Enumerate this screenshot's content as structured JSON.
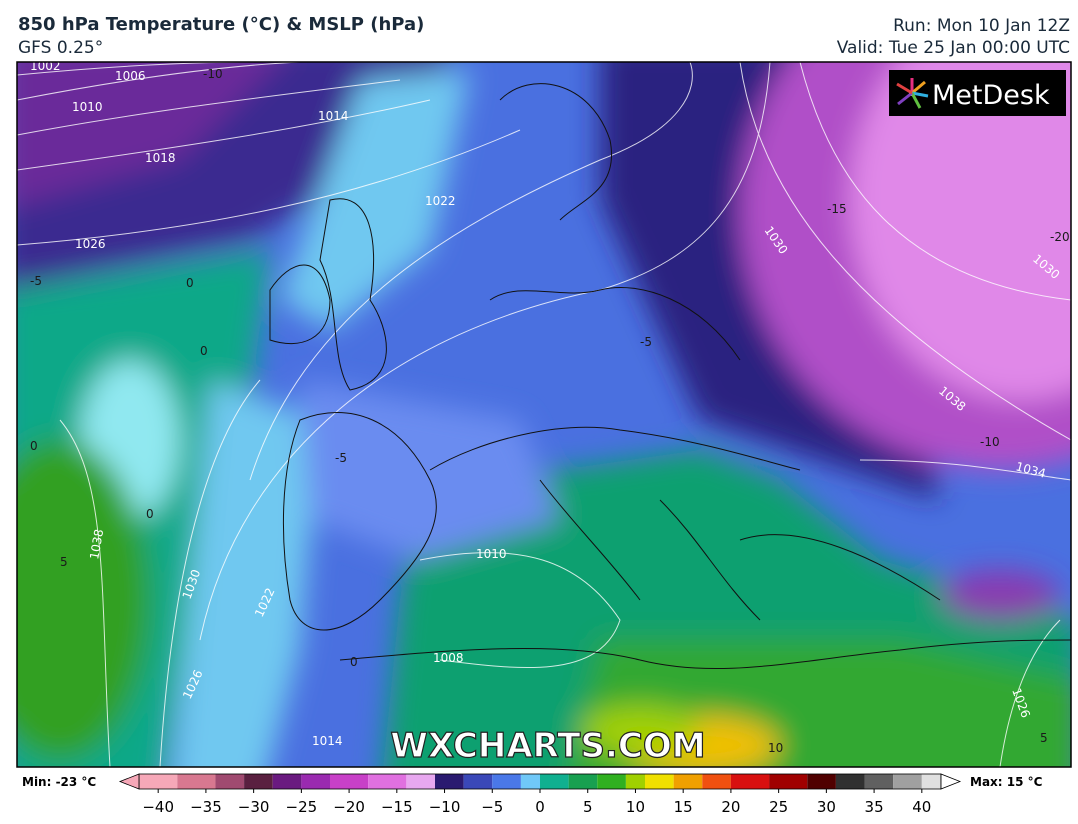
{
  "header": {
    "title": "850 hPa Temperature (°C) & MSLP (hPa)",
    "model": "GFS 0.25°",
    "run": "Run: Mon 10 Jan 12Z",
    "valid": "Valid: Tue 25 Jan 00:00 UTC"
  },
  "logo": "MetDesk",
  "watermark": "WXCHARTS.COM",
  "isobar_labels": [
    "1002",
    "1006",
    "1010",
    "1014",
    "1018",
    "1022",
    "1026",
    "1030",
    "1030",
    "1038",
    "1034",
    "1010",
    "1008",
    "1026",
    "1030",
    "1022",
    "1038",
    "1014",
    "1026"
  ],
  "temperature_labels": [
    "-10",
    "-15",
    "-20",
    "-5",
    "0",
    "0",
    "0",
    "0",
    "-5",
    "-5",
    "5",
    "0",
    "10",
    "5",
    "-10"
  ],
  "colorbar": {
    "min_label": "Min: -23 °C",
    "max_label": "Max: 15 °C",
    "lim": [
      -44,
      44
    ],
    "ticks": [
      {
        "value": -40,
        "label": "−40"
      },
      {
        "value": -35,
        "label": "−35"
      },
      {
        "value": -30,
        "label": "−30"
      },
      {
        "value": -25,
        "label": "−25"
      },
      {
        "value": -20,
        "label": "−20"
      },
      {
        "value": -15,
        "label": "−15"
      },
      {
        "value": -10,
        "label": "−10"
      },
      {
        "value": -5,
        "label": "−5"
      },
      0,
      5,
      10,
      15,
      20,
      25,
      30,
      35,
      40
    ],
    "stops": [
      {
        "value": -42,
        "color": "#f6a8b8"
      },
      {
        "value": -38,
        "color": "#d87890"
      },
      {
        "value": -34,
        "color": "#a04a70"
      },
      {
        "value": -31,
        "color": "#5a2040"
      },
      {
        "value": -28,
        "color": "#6a1a80"
      },
      {
        "value": -25,
        "color": "#9a2ab0"
      },
      {
        "value": -22,
        "color": "#c840c8"
      },
      {
        "value": -18,
        "color": "#e070e0"
      },
      {
        "value": -14,
        "color": "#e8a8f0"
      },
      {
        "value": -11,
        "color": "#2a1a70"
      },
      {
        "value": -8,
        "color": "#3a48b8"
      },
      {
        "value": -5,
        "color": "#4a78e8"
      },
      {
        "value": -2,
        "color": "#70c8f8"
      },
      {
        "value": 0,
        "color": "#10b090"
      },
      {
        "value": 3,
        "color": "#18a050"
      },
      {
        "value": 6,
        "color": "#30b020"
      },
      {
        "value": 9,
        "color": "#a0d000"
      },
      {
        "value": 11,
        "color": "#f0e000"
      },
      {
        "value": 14,
        "color": "#f0a000"
      },
      {
        "value": 17,
        "color": "#f05010"
      },
      {
        "value": 20,
        "color": "#d81010"
      },
      {
        "value": 24,
        "color": "#a00000"
      },
      {
        "value": 28,
        "color": "#500000"
      },
      {
        "value": 31,
        "color": "#303030"
      },
      {
        "value": 34,
        "color": "#606060"
      },
      {
        "value": 37,
        "color": "#a0a0a0"
      },
      {
        "value": 40,
        "color": "#e0e0e0"
      },
      {
        "value": 42,
        "color": "#ffffff"
      }
    ]
  }
}
